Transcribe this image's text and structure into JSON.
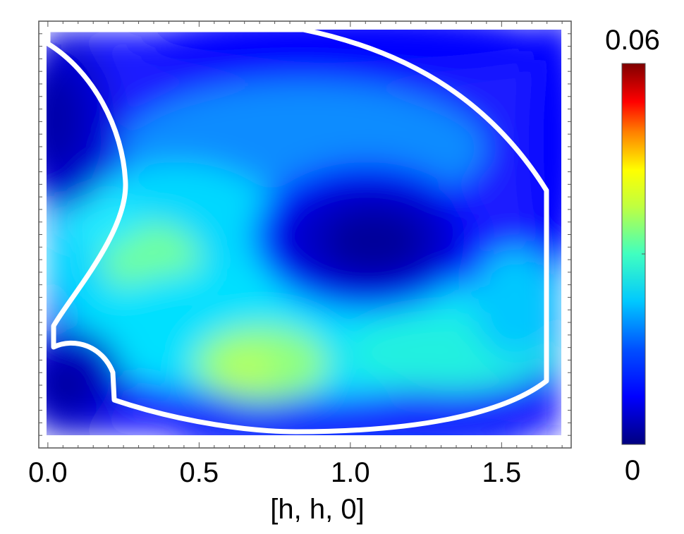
{
  "chart_data": {
    "type": "heatmap",
    "title": "",
    "xlabel": "[h, h, 0]",
    "ylabel": "",
    "xlim": [
      -0.03,
      1.73
    ],
    "x_ticks": [
      "0.0",
      "0.5",
      "1.0",
      "1.5"
    ],
    "x_tick_values": [
      0.0,
      0.5,
      1.0,
      1.5
    ],
    "colorbar": {
      "min_label": "0",
      "max_label": "0.06",
      "min": 0,
      "max": 0.06,
      "colormap": "jet",
      "colors": [
        "#00007f",
        "#0000ff",
        "#007fff",
        "#00ffff",
        "#7fff7f",
        "#ffff00",
        "#ff7f00",
        "#ff0000",
        "#7f0000"
      ]
    },
    "features": [
      {
        "kind": "low",
        "x": 1.06,
        "y_frac": 0.46,
        "value": 0.003
      },
      {
        "kind": "low",
        "x": 0.03,
        "y_frac": 0.83,
        "value": 0.004
      },
      {
        "kind": "low",
        "x": 0.03,
        "y_frac": 0.15,
        "value": 0.006
      },
      {
        "kind": "high",
        "x": 0.72,
        "y_frac": 0.83,
        "value": 0.033
      },
      {
        "kind": "high",
        "x": 0.33,
        "y_frac": 0.58,
        "value": 0.03
      }
    ],
    "grid": false,
    "overlay": "white outlined integration region"
  }
}
